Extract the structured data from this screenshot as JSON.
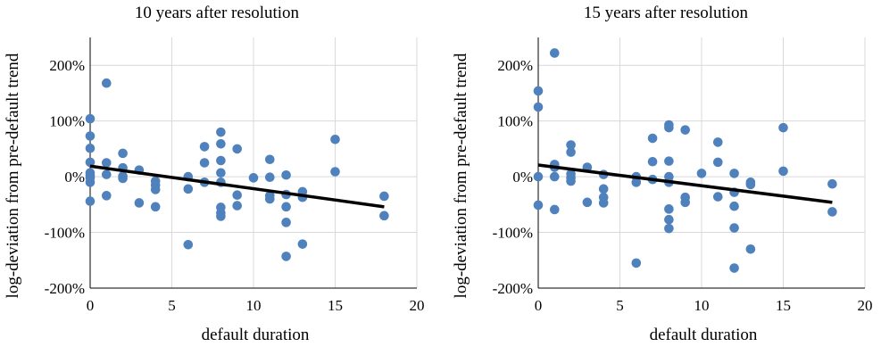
{
  "chart_data": [
    {
      "type": "scatter",
      "title": "10 years after resolution",
      "xlabel": "default duration",
      "ylabel": "log-deviation from pre-default trend",
      "xlim": [
        0,
        20
      ],
      "ylim": [
        -200,
        250
      ],
      "x_ticks": [
        0,
        5,
        10,
        15,
        20
      ],
      "y_ticks": [
        200,
        100,
        0,
        -100,
        -200
      ],
      "y_tick_labels": [
        "200%",
        "100%",
        "0%",
        "-100%",
        "-200%"
      ],
      "grid": true,
      "point_color": "#4f81bd",
      "line_color": "#000000",
      "points": [
        [
          0,
          104
        ],
        [
          0,
          73
        ],
        [
          0,
          51
        ],
        [
          0,
          26
        ],
        [
          0,
          7
        ],
        [
          0,
          2
        ],
        [
          0,
          -2
        ],
        [
          0,
          -10
        ],
        [
          0,
          -44
        ],
        [
          1,
          168
        ],
        [
          1,
          25
        ],
        [
          1,
          4
        ],
        [
          1,
          -34
        ],
        [
          2,
          42
        ],
        [
          2,
          16
        ],
        [
          2,
          1
        ],
        [
          2,
          -3
        ],
        [
          3,
          12
        ],
        [
          3,
          -47
        ],
        [
          4,
          -8
        ],
        [
          4,
          -15
        ],
        [
          4,
          -23
        ],
        [
          4,
          -54
        ],
        [
          6,
          0
        ],
        [
          6,
          -22
        ],
        [
          6,
          -122
        ],
        [
          7,
          54
        ],
        [
          7,
          25
        ],
        [
          7,
          -10
        ],
        [
          8,
          80
        ],
        [
          8,
          59
        ],
        [
          8,
          29
        ],
        [
          8,
          7
        ],
        [
          8,
          -10
        ],
        [
          8,
          -55
        ],
        [
          8,
          -65
        ],
        [
          8,
          -71
        ],
        [
          9,
          50
        ],
        [
          9,
          -33
        ],
        [
          9,
          -52
        ],
        [
          10,
          -2
        ],
        [
          11,
          31
        ],
        [
          11,
          -1
        ],
        [
          11,
          -34
        ],
        [
          11,
          -40
        ],
        [
          12,
          3
        ],
        [
          12,
          -32
        ],
        [
          12,
          -54
        ],
        [
          12,
          -82
        ],
        [
          12,
          -143
        ],
        [
          13,
          -27
        ],
        [
          13,
          -37
        ],
        [
          13,
          -121
        ],
        [
          15,
          67
        ],
        [
          15,
          9
        ],
        [
          18,
          -35
        ],
        [
          18,
          -70
        ]
      ],
      "trend_line": {
        "x": [
          0,
          18
        ],
        "y": [
          19,
          -54
        ]
      }
    },
    {
      "type": "scatter",
      "title": "15 years after resolution",
      "xlabel": "default duration",
      "ylabel": "log-deviation from pre-default trend",
      "xlim": [
        0,
        20
      ],
      "ylim": [
        -200,
        250
      ],
      "x_ticks": [
        0,
        5,
        10,
        15,
        20
      ],
      "y_ticks": [
        200,
        100,
        0,
        -100,
        -200
      ],
      "y_tick_labels": [
        "200%",
        "100%",
        "0%",
        "-100%",
        "-200%"
      ],
      "grid": true,
      "point_color": "#4f81bd",
      "line_color": "#000000",
      "points": [
        [
          0,
          154
        ],
        [
          0,
          125
        ],
        [
          0,
          0
        ],
        [
          0,
          -51
        ],
        [
          1,
          222
        ],
        [
          1,
          22
        ],
        [
          1,
          17
        ],
        [
          1,
          0
        ],
        [
          1,
          -59
        ],
        [
          2,
          57
        ],
        [
          2,
          44
        ],
        [
          2,
          5
        ],
        [
          2,
          -2
        ],
        [
          2,
          -8
        ],
        [
          3,
          17
        ],
        [
          3,
          -46
        ],
        [
          4,
          4
        ],
        [
          4,
          -22
        ],
        [
          4,
          -37
        ],
        [
          4,
          -47
        ],
        [
          6,
          0
        ],
        [
          6,
          -10
        ],
        [
          6,
          -155
        ],
        [
          7,
          69
        ],
        [
          7,
          27
        ],
        [
          7,
          -5
        ],
        [
          8,
          93
        ],
        [
          8,
          88
        ],
        [
          8,
          28
        ],
        [
          8,
          0
        ],
        [
          8,
          -10
        ],
        [
          8,
          -58
        ],
        [
          8,
          -77
        ],
        [
          8,
          -93
        ],
        [
          9,
          84
        ],
        [
          9,
          -37
        ],
        [
          9,
          -46
        ],
        [
          10,
          6
        ],
        [
          11,
          62
        ],
        [
          11,
          26
        ],
        [
          11,
          -36
        ],
        [
          12,
          6
        ],
        [
          12,
          -28
        ],
        [
          12,
          -53
        ],
        [
          12,
          -92
        ],
        [
          12,
          -164
        ],
        [
          13,
          -10
        ],
        [
          13,
          -14
        ],
        [
          13,
          -130
        ],
        [
          15,
          88
        ],
        [
          15,
          10
        ],
        [
          18,
          -13
        ],
        [
          18,
          -63
        ]
      ],
      "trend_line": {
        "x": [
          0,
          18
        ],
        "y": [
          21,
          -46
        ]
      }
    }
  ]
}
